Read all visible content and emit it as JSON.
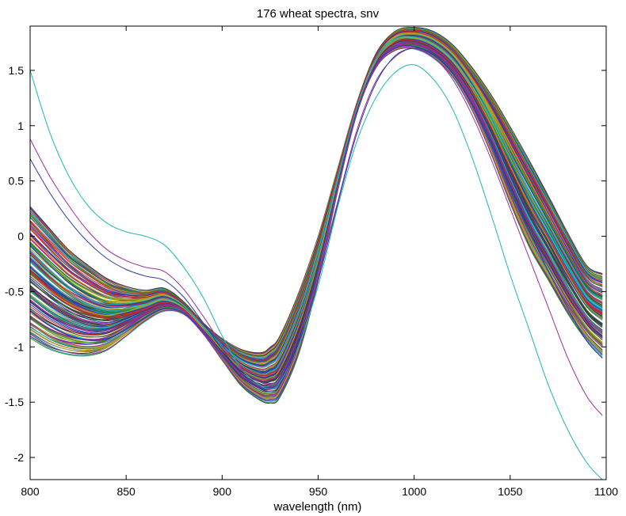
{
  "chart_data": {
    "type": "line",
    "title": "176 wheat spectra, snv",
    "xlabel": "wavelength (nm)",
    "ylabel": "",
    "xlim": [
      800,
      1100
    ],
    "ylim": [
      -2.2,
      1.9
    ],
    "xticks": [
      800,
      850,
      900,
      950,
      1000,
      1050,
      1100
    ],
    "yticks": [
      -2,
      -1.5,
      -1,
      -0.5,
      0,
      0.5,
      1,
      1.5
    ],
    "xtick_labels": [
      "800",
      "850",
      "900",
      "950",
      "1000",
      "1050",
      "1100"
    ],
    "ytick_labels": [
      "-2",
      "-1.5",
      "-1",
      "-0.5",
      "0",
      "0.5",
      "1",
      "1.5"
    ],
    "grid": false,
    "series_count": 176,
    "x": [
      800,
      810,
      820,
      830,
      840,
      850,
      860,
      870,
      880,
      890,
      900,
      910,
      920,
      925,
      930,
      940,
      950,
      960,
      970,
      980,
      990,
      1000,
      1010,
      1020,
      1030,
      1040,
      1050,
      1060,
      1070,
      1080,
      1090,
      1098
    ],
    "envelope": {
      "upper_typical": [
        0.3,
        0.1,
        -0.1,
        -0.25,
        -0.38,
        -0.46,
        -0.5,
        -0.48,
        -0.6,
        -0.78,
        -0.92,
        -1.02,
        -1.05,
        -1.0,
        -0.9,
        -0.5,
        0.0,
        0.6,
        1.2,
        1.65,
        1.85,
        1.88,
        1.84,
        1.72,
        1.52,
        1.28,
        1.0,
        0.7,
        0.38,
        0.05,
        -0.25,
        -0.32
      ],
      "lower_typical": [
        -0.92,
        -1.02,
        -1.07,
        -1.08,
        -1.03,
        -0.9,
        -0.76,
        -0.67,
        -0.7,
        -0.88,
        -1.12,
        -1.35,
        -1.48,
        -1.5,
        -1.45,
        -1.05,
        -0.4,
        0.4,
        1.1,
        1.52,
        1.68,
        1.7,
        1.62,
        1.45,
        1.15,
        0.75,
        0.3,
        -0.1,
        -0.4,
        -0.7,
        -0.95,
        -1.1
      ]
    },
    "outliers": [
      {
        "color": "#1fb5bd",
        "values": [
          1.5,
          0.95,
          0.55,
          0.28,
          0.12,
          0.04,
          0.0,
          -0.08,
          -0.28,
          -0.55,
          -0.9,
          -1.2,
          -1.35,
          -1.38,
          -1.32,
          -0.98,
          -0.45,
          0.25,
          0.85,
          1.25,
          1.48,
          1.55,
          1.42,
          1.15,
          0.72,
          0.2,
          -0.35,
          -0.85,
          -1.35,
          -1.75,
          -2.05,
          -2.2
        ]
      },
      {
        "color": "#9b2f9b",
        "values": [
          0.88,
          0.55,
          0.28,
          0.05,
          -0.12,
          -0.22,
          -0.28,
          -0.32,
          -0.48,
          -0.72,
          -0.98,
          -1.2,
          -1.32,
          -1.33,
          -1.28,
          -0.9,
          -0.35,
          0.3,
          0.95,
          1.4,
          1.62,
          1.7,
          1.62,
          1.42,
          1.1,
          0.7,
          0.25,
          -0.2,
          -0.65,
          -1.1,
          -1.45,
          -1.62
        ]
      },
      {
        "color": "#2a3f9e",
        "values": [
          0.7,
          0.4,
          0.15,
          -0.05,
          -0.2,
          -0.3,
          -0.36,
          -0.4,
          -0.55,
          -0.78,
          -1.02,
          -1.24,
          -1.38,
          -1.4,
          -1.35,
          -0.96,
          -0.4,
          0.28,
          0.92,
          1.38,
          1.63,
          1.7,
          1.65,
          1.48,
          1.2,
          0.85,
          0.45,
          0.05,
          -0.32,
          -0.65,
          -0.95,
          -1.1
        ]
      }
    ],
    "palette": [
      "#1f3fbf",
      "#2e8b2e",
      "#d62728",
      "#1fb5bd",
      "#9b2f9b",
      "#b5a51f",
      "#404040"
    ]
  }
}
